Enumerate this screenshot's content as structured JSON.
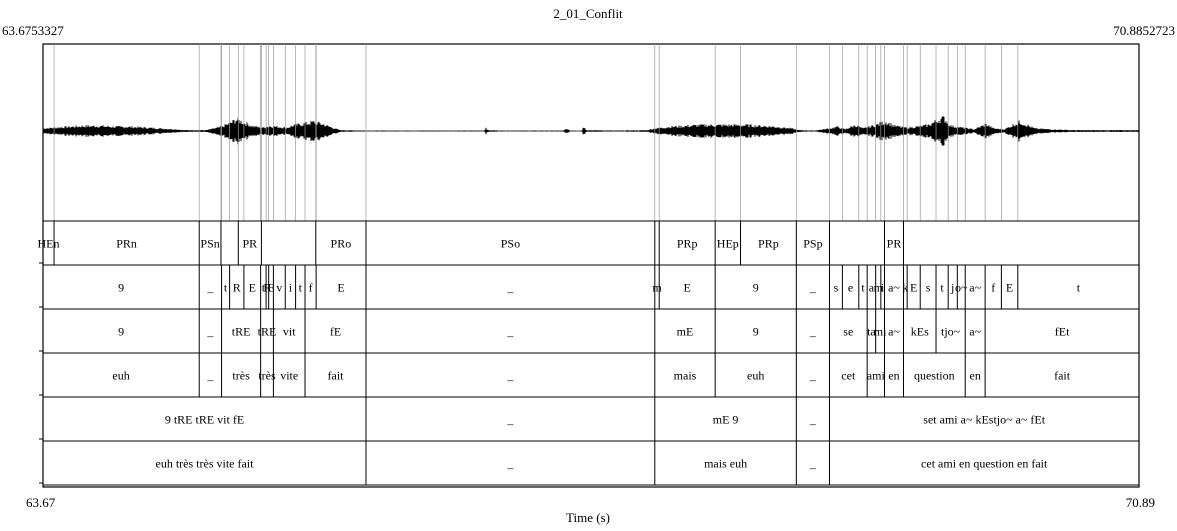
{
  "title": "2_01_Conflit",
  "start_time_precise": "63.6753327",
  "end_time_precise": "70.8852723",
  "start_time": "63.67",
  "end_time": "70.89",
  "xlabel": "Time (s)",
  "time_range": [
    63.6753327,
    70.8852723
  ],
  "waveform": {
    "envelope": [
      [
        63.675,
        3
      ],
      [
        63.75,
        4
      ],
      [
        63.85,
        5
      ],
      [
        63.95,
        6
      ],
      [
        64.05,
        6
      ],
      [
        64.15,
        5
      ],
      [
        64.25,
        5
      ],
      [
        64.35,
        4
      ],
      [
        64.45,
        3
      ],
      [
        64.55,
        2
      ],
      [
        64.6,
        1
      ],
      [
        64.75,
        1
      ],
      [
        64.8,
        3
      ],
      [
        64.85,
        5
      ],
      [
        64.9,
        9
      ],
      [
        64.95,
        14
      ],
      [
        65.0,
        10
      ],
      [
        65.05,
        6
      ],
      [
        65.12,
        4
      ],
      [
        65.17,
        6
      ],
      [
        65.22,
        5
      ],
      [
        65.28,
        4
      ],
      [
        65.33,
        7
      ],
      [
        65.4,
        9
      ],
      [
        65.46,
        11
      ],
      [
        65.52,
        8
      ],
      [
        65.58,
        4
      ],
      [
        65.63,
        1
      ],
      [
        65.8,
        0.5
      ],
      [
        66.2,
        0.5
      ],
      [
        66.58,
        0.5
      ],
      [
        66.59,
        5
      ],
      [
        66.6,
        1
      ],
      [
        66.7,
        0.5
      ],
      [
        67.1,
        0.5
      ],
      [
        67.12,
        3
      ],
      [
        67.14,
        0.5
      ],
      [
        67.22,
        0.5
      ],
      [
        67.23,
        6
      ],
      [
        67.25,
        1
      ],
      [
        67.45,
        0.5
      ],
      [
        67.65,
        1
      ],
      [
        67.7,
        3
      ],
      [
        67.8,
        5
      ],
      [
        67.9,
        6
      ],
      [
        68.0,
        7
      ],
      [
        68.1,
        7
      ],
      [
        68.2,
        7
      ],
      [
        68.3,
        7
      ],
      [
        68.4,
        6
      ],
      [
        68.5,
        5
      ],
      [
        68.6,
        3
      ],
      [
        68.65,
        1
      ],
      [
        68.75,
        0.5
      ],
      [
        68.85,
        3
      ],
      [
        68.9,
        5
      ],
      [
        68.95,
        2
      ],
      [
        69.02,
        7
      ],
      [
        69.07,
        3
      ],
      [
        69.15,
        7
      ],
      [
        69.22,
        11
      ],
      [
        69.28,
        6
      ],
      [
        69.35,
        4
      ],
      [
        69.42,
        5
      ],
      [
        69.5,
        7
      ],
      [
        69.55,
        12
      ],
      [
        69.6,
        16
      ],
      [
        69.65,
        6
      ],
      [
        69.72,
        4
      ],
      [
        69.8,
        2
      ],
      [
        69.88,
        8
      ],
      [
        69.93,
        3
      ],
      [
        70.0,
        2
      ],
      [
        70.1,
        11
      ],
      [
        70.15,
        7
      ],
      [
        70.2,
        3
      ],
      [
        70.3,
        2
      ],
      [
        70.45,
        1
      ],
      [
        70.885,
        1
      ]
    ]
  },
  "tiers": [
    {
      "name": "tier-1",
      "intervals": [
        {
          "t0": 63.6753,
          "t1": 63.748,
          "label": "HEn"
        },
        {
          "t0": 63.748,
          "t1": 64.703,
          "label": "PRn"
        },
        {
          "t0": 64.703,
          "t1": 64.846,
          "label": "PSn"
        },
        {
          "t0": 64.846,
          "t1": 64.96,
          "label": ""
        },
        {
          "t0": 64.96,
          "t1": 65.112,
          "label": "PR"
        },
        {
          "t0": 65.112,
          "t1": 65.47,
          "label": ""
        },
        {
          "t0": 65.47,
          "t1": 65.8,
          "label": "PRo"
        },
        {
          "t0": 65.8,
          "t1": 67.7,
          "label": "PSo"
        },
        {
          "t0": 67.7,
          "t1": 67.729,
          "label": ""
        },
        {
          "t0": 67.729,
          "t1": 68.097,
          "label": "PRp"
        },
        {
          "t0": 68.097,
          "t1": 68.264,
          "label": "HEp"
        },
        {
          "t0": 68.264,
          "t1": 68.631,
          "label": "PRp"
        },
        {
          "t0": 68.631,
          "t1": 68.849,
          "label": "PSp"
        },
        {
          "t0": 68.849,
          "t1": 69.211,
          "label": ""
        },
        {
          "t0": 69.211,
          "t1": 69.336,
          "label": "PR"
        },
        {
          "t0": 69.336,
          "t1": 70.8853,
          "label": ""
        }
      ]
    },
    {
      "name": "tier-2",
      "intervals": [
        {
          "t0": 63.6753,
          "t1": 64.703,
          "label": "9"
        },
        {
          "t0": 64.703,
          "t1": 64.85,
          "label": "_"
        },
        {
          "t0": 64.85,
          "t1": 64.903,
          "label": "t"
        },
        {
          "t0": 64.903,
          "t1": 64.997,
          "label": "R"
        },
        {
          "t0": 64.997,
          "t1": 65.107,
          "label": "E"
        },
        {
          "t0": 65.107,
          "t1": 65.143,
          "label": "t"
        },
        {
          "t0": 65.143,
          "t1": 65.16,
          "label": "R"
        },
        {
          "t0": 65.16,
          "t1": 65.191,
          "label": "E"
        },
        {
          "t0": 65.191,
          "t1": 65.269,
          "label": "v"
        },
        {
          "t0": 65.269,
          "t1": 65.337,
          "label": "i"
        },
        {
          "t0": 65.337,
          "t1": 65.399,
          "label": "t"
        },
        {
          "t0": 65.399,
          "t1": 65.472,
          "label": "f"
        },
        {
          "t0": 65.472,
          "t1": 65.8,
          "label": "E"
        },
        {
          "t0": 65.8,
          "t1": 67.7,
          "label": "_"
        },
        {
          "t0": 67.7,
          "t1": 67.729,
          "label": "m"
        },
        {
          "t0": 67.729,
          "t1": 68.097,
          "label": "E"
        },
        {
          "t0": 68.097,
          "t1": 68.631,
          "label": "9"
        },
        {
          "t0": 68.631,
          "t1": 68.849,
          "label": "_"
        },
        {
          "t0": 68.849,
          "t1": 68.934,
          "label": "s"
        },
        {
          "t0": 68.934,
          "t1": 69.042,
          "label": "e"
        },
        {
          "t0": 69.042,
          "t1": 69.097,
          "label": "t"
        },
        {
          "t0": 69.097,
          "t1": 69.153,
          "label": "a"
        },
        {
          "t0": 69.153,
          "t1": 69.187,
          "label": "m"
        },
        {
          "t0": 69.187,
          "t1": 69.211,
          "label": "i"
        },
        {
          "t0": 69.211,
          "t1": 69.336,
          "label": "a~"
        },
        {
          "t0": 69.336,
          "t1": 69.36,
          "label": "k"
        },
        {
          "t0": 69.36,
          "t1": 69.446,
          "label": "E"
        },
        {
          "t0": 69.446,
          "t1": 69.55,
          "label": "s"
        },
        {
          "t0": 69.55,
          "t1": 69.63,
          "label": "t"
        },
        {
          "t0": 69.63,
          "t1": 69.69,
          "label": "j"
        },
        {
          "t0": 69.69,
          "t1": 69.742,
          "label": "o~"
        },
        {
          "t0": 69.742,
          "t1": 69.873,
          "label": "a~"
        },
        {
          "t0": 69.873,
          "t1": 69.98,
          "label": "f"
        },
        {
          "t0": 69.98,
          "t1": 70.088,
          "label": "E"
        },
        {
          "t0": 70.088,
          "t1": 70.8853,
          "label": "t"
        }
      ]
    },
    {
      "name": "tier-3",
      "intervals": [
        {
          "t0": 63.6753,
          "t1": 64.703,
          "label": "9"
        },
        {
          "t0": 64.703,
          "t1": 64.85,
          "label": "_"
        },
        {
          "t0": 64.85,
          "t1": 65.107,
          "label": "tRE"
        },
        {
          "t0": 65.107,
          "t1": 65.191,
          "label": "tRE"
        },
        {
          "t0": 65.191,
          "t1": 65.399,
          "label": "vit"
        },
        {
          "t0": 65.399,
          "t1": 65.8,
          "label": "fE"
        },
        {
          "t0": 65.8,
          "t1": 67.7,
          "label": "_"
        },
        {
          "t0": 67.7,
          "t1": 68.097,
          "label": "mE"
        },
        {
          "t0": 68.097,
          "t1": 68.631,
          "label": "9"
        },
        {
          "t0": 68.631,
          "t1": 68.849,
          "label": "_"
        },
        {
          "t0": 68.849,
          "t1": 69.097,
          "label": "se"
        },
        {
          "t0": 69.097,
          "t1": 69.153,
          "label": "ta"
        },
        {
          "t0": 69.153,
          "t1": 69.211,
          "label": "mi"
        },
        {
          "t0": 69.211,
          "t1": 69.336,
          "label": "a~"
        },
        {
          "t0": 69.336,
          "t1": 69.55,
          "label": "kEs"
        },
        {
          "t0": 69.55,
          "t1": 69.742,
          "label": "tjo~"
        },
        {
          "t0": 69.742,
          "t1": 69.873,
          "label": "a~"
        },
        {
          "t0": 69.873,
          "t1": 70.8853,
          "label": "fEt"
        }
      ]
    },
    {
      "name": "tier-4",
      "intervals": [
        {
          "t0": 63.6753,
          "t1": 64.703,
          "label": "euh"
        },
        {
          "t0": 64.703,
          "t1": 64.85,
          "label": "_"
        },
        {
          "t0": 64.85,
          "t1": 65.107,
          "label": "très"
        },
        {
          "t0": 65.107,
          "t1": 65.191,
          "label": "très"
        },
        {
          "t0": 65.191,
          "t1": 65.399,
          "label": "vite"
        },
        {
          "t0": 65.399,
          "t1": 65.8,
          "label": "fait"
        },
        {
          "t0": 65.8,
          "t1": 67.7,
          "label": "_"
        },
        {
          "t0": 67.7,
          "t1": 68.097,
          "label": "mais"
        },
        {
          "t0": 68.097,
          "t1": 68.631,
          "label": "euh"
        },
        {
          "t0": 68.631,
          "t1": 68.849,
          "label": "_"
        },
        {
          "t0": 68.849,
          "t1": 69.097,
          "label": "cet"
        },
        {
          "t0": 69.097,
          "t1": 69.211,
          "label": "ami"
        },
        {
          "t0": 69.211,
          "t1": 69.336,
          "label": "en"
        },
        {
          "t0": 69.336,
          "t1": 69.742,
          "label": "question"
        },
        {
          "t0": 69.742,
          "t1": 69.873,
          "label": "en"
        },
        {
          "t0": 69.873,
          "t1": 70.8853,
          "label": "fait"
        }
      ]
    },
    {
      "name": "tier-5",
      "intervals": [
        {
          "t0": 63.6753,
          "t1": 65.8,
          "label": "9 tRE tRE vit fE"
        },
        {
          "t0": 65.8,
          "t1": 67.7,
          "label": "_"
        },
        {
          "t0": 67.7,
          "t1": 68.631,
          "label": "mE 9"
        },
        {
          "t0": 68.631,
          "t1": 68.849,
          "label": "_"
        },
        {
          "t0": 68.849,
          "t1": 70.8853,
          "label": "set ami a~ kEstjo~ a~ fEt"
        }
      ]
    },
    {
      "name": "tier-6",
      "intervals": [
        {
          "t0": 63.6753,
          "t1": 65.8,
          "label": "euh très très vite fait"
        },
        {
          "t0": 65.8,
          "t1": 67.7,
          "label": "_"
        },
        {
          "t0": 67.7,
          "t1": 68.631,
          "label": "mais euh"
        },
        {
          "t0": 68.631,
          "t1": 68.849,
          "label": "_"
        },
        {
          "t0": 68.849,
          "t1": 70.8853,
          "label": "cet ami en question en fait"
        }
      ]
    }
  ]
}
